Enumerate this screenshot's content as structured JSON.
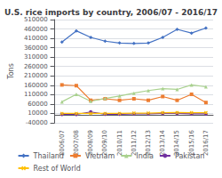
{
  "chart_data": {
    "type": "line",
    "title": "U.S. rice imports by country, 2006/07 - 2016/17",
    "ylabel": "Tons",
    "categories": [
      "2006/07",
      "2007/08",
      "2008/09",
      "2009/10",
      "2010/11",
      "2011/12",
      "2012/13",
      "2013/14",
      "2014/15",
      "2015/16",
      "2016/17"
    ],
    "series": [
      {
        "name": "Thailand",
        "color": "#4472C4",
        "marker": "diamond",
        "values": [
          390000,
          450000,
          415000,
          395000,
          385000,
          383000,
          385000,
          415000,
          458000,
          438000,
          465000
        ]
      },
      {
        "name": "Vietnam",
        "color": "#ED7D31",
        "marker": "square",
        "values": [
          162000,
          158000,
          80000,
          88000,
          80000,
          88000,
          80000,
          100000,
          80000,
          112000,
          68000
        ]
      },
      {
        "name": "India",
        "color": "#A9D18E",
        "marker": "triangle",
        "values": [
          72000,
          112000,
          75000,
          90000,
          103000,
          118000,
          132000,
          142000,
          138000,
          162000,
          152000
        ]
      },
      {
        "name": "Pakistan",
        "color": "#7030A0",
        "marker": "circle",
        "values": [
          5000,
          5000,
          18000,
          6000,
          6000,
          8000,
          8000,
          10000,
          10000,
          8000,
          8000
        ]
      },
      {
        "name": "Rest of World",
        "color": "#FFC000",
        "marker": "x",
        "values": [
          10000,
          10000,
          10000,
          10000,
          10000,
          12000,
          12000,
          14000,
          15000,
          14000,
          14000
        ]
      }
    ],
    "ylim": [
      -40000,
      510000
    ],
    "yticks": [
      -40000,
      10000,
      60000,
      110000,
      160000,
      210000,
      260000,
      310000,
      360000,
      410000,
      460000,
      510000
    ],
    "grid": true,
    "legend": "bottom"
  }
}
